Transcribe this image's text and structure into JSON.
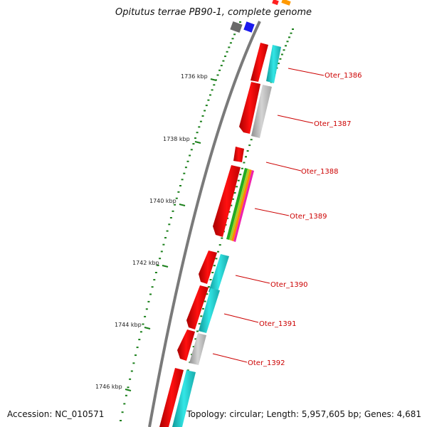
{
  "title": "Opitutus terrae PB90-1, complete genome",
  "accession": "Accession: NC_010571",
  "summary": "Topology: circular; Length: 5,957,605 bp; Genes: 4,681",
  "colors": {
    "backbone": "#808080",
    "gene_forward": "#ff0000",
    "tick": "#1a7f1a",
    "label": "#cc0000",
    "cyan": "#22cccc",
    "grey": "#b8b8b8",
    "blue": "#1a1aee",
    "orange": "#ff9900"
  },
  "scale": {
    "unit": "kbp",
    "ticks": [
      "1736 kbp",
      "1738 kbp",
      "1740 kbp",
      "1742 kbp",
      "1744 kbp",
      "1746 kbp"
    ]
  },
  "genes": [
    {
      "label": "Oter_1386"
    },
    {
      "label": "Oter_1387"
    },
    {
      "label": "Oter_1388"
    },
    {
      "label": "Oter_1389"
    },
    {
      "label": "Oter_1390"
    },
    {
      "label": "Oter_1391"
    },
    {
      "label": "Oter_1392"
    }
  ]
}
